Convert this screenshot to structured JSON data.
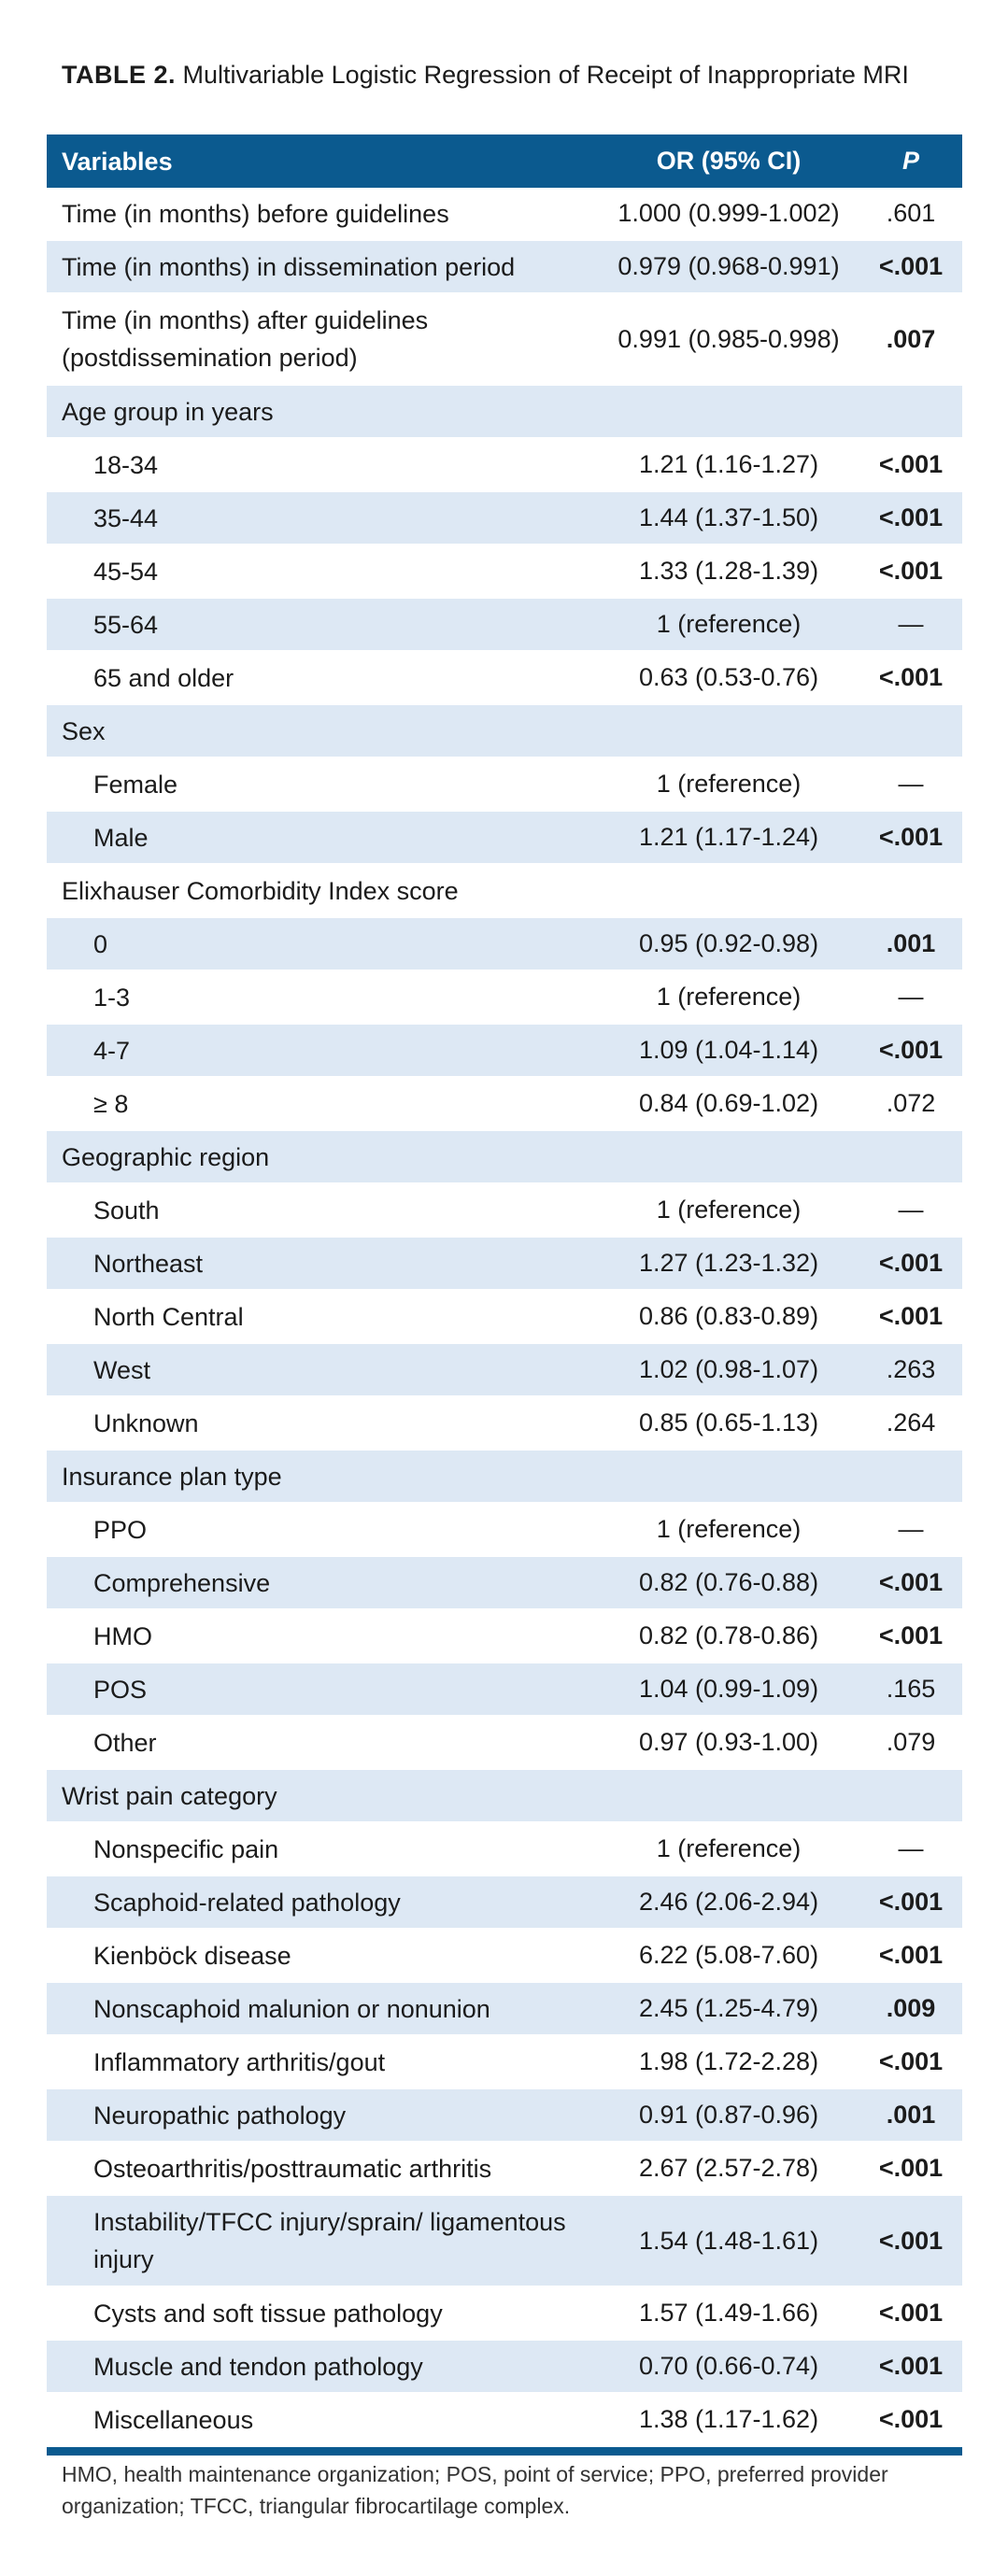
{
  "title": {
    "label": "TABLE 2.",
    "text": "Multivariable Logistic Regression of Receipt of Inappropriate MRI"
  },
  "header": {
    "variables": "Variables",
    "or": "OR (95% CI)",
    "p": "P"
  },
  "rows": [
    {
      "variable": "Time (in months) before guidelines",
      "or": "1.000 (0.999-1.002)",
      "p": ".601"
    },
    {
      "variable": "Time (in months) in dissemination period",
      "or": "0.979 (0.968-0.991)",
      "p": "<.001"
    },
    {
      "variable": "Time (in months) after guidelines (postdissemination period)",
      "or": "0.991 (0.985-0.998)",
      "p": ".007"
    },
    {
      "variable": "Age group in years",
      "or": "",
      "p": ""
    },
    {
      "variable": "18-34",
      "or": "1.21 (1.16-1.27)",
      "p": "<.001"
    },
    {
      "variable": "35-44",
      "or": "1.44 (1.37-1.50)",
      "p": "<.001"
    },
    {
      "variable": "45-54",
      "or": "1.33 (1.28-1.39)",
      "p": "<.001"
    },
    {
      "variable": "55-64",
      "or": "1 (reference)",
      "p": "—"
    },
    {
      "variable": "65 and older",
      "or": "0.63 (0.53-0.76)",
      "p": "<.001"
    },
    {
      "variable": "Sex",
      "or": "",
      "p": ""
    },
    {
      "variable": "Female",
      "or": "1 (reference)",
      "p": "—"
    },
    {
      "variable": "Male",
      "or": "1.21 (1.17-1.24)",
      "p": "<.001"
    },
    {
      "variable": "Elixhauser Comorbidity Index score",
      "or": "",
      "p": ""
    },
    {
      "variable": "0",
      "or": "0.95 (0.92-0.98)",
      "p": ".001"
    },
    {
      "variable": "1-3",
      "or": "1 (reference)",
      "p": "—"
    },
    {
      "variable": "4-7",
      "or": "1.09 (1.04-1.14)",
      "p": "<.001"
    },
    {
      "variable": "≥ 8",
      "or": "0.84 (0.69-1.02)",
      "p": ".072"
    },
    {
      "variable": "Geographic region",
      "or": "",
      "p": ""
    },
    {
      "variable": "South",
      "or": "1 (reference)",
      "p": "—"
    },
    {
      "variable": "Northeast",
      "or": "1.27 (1.23-1.32)",
      "p": "<.001"
    },
    {
      "variable": "North Central",
      "or": "0.86 (0.83-0.89)",
      "p": "<.001"
    },
    {
      "variable": "West",
      "or": "1.02 (0.98-1.07)",
      "p": ".263"
    },
    {
      "variable": "Unknown",
      "or": "0.85 (0.65-1.13)",
      "p": ".264"
    },
    {
      "variable": "Insurance plan type",
      "or": "",
      "p": ""
    },
    {
      "variable": "PPO",
      "or": "1 (reference)",
      "p": "—"
    },
    {
      "variable": "Comprehensive",
      "or": "0.82 (0.76-0.88)",
      "p": "<.001"
    },
    {
      "variable": "HMO",
      "or": "0.82 (0.78-0.86)",
      "p": "<.001"
    },
    {
      "variable": "POS",
      "or": "1.04 (0.99-1.09)",
      "p": ".165"
    },
    {
      "variable": "Other",
      "or": "0.97 (0.93-1.00)",
      "p": ".079"
    },
    {
      "variable": "Wrist pain category",
      "or": "",
      "p": ""
    },
    {
      "variable": "Nonspecific pain",
      "or": "1 (reference)",
      "p": "—"
    },
    {
      "variable": "Scaphoid-related pathology",
      "or": "2.46 (2.06-2.94)",
      "p": "<.001"
    },
    {
      "variable": "Kienböck disease",
      "or": "6.22 (5.08-7.60)",
      "p": "<.001"
    },
    {
      "variable": "Nonscaphoid malunion or nonunion",
      "or": "2.45 (1.25-4.79)",
      "p": ".009"
    },
    {
      "variable": "Inflammatory arthritis/gout",
      "or": "1.98 (1.72-2.28)",
      "p": "<.001"
    },
    {
      "variable": "Neuropathic pathology",
      "or": "0.91 (0.87-0.96)",
      "p": ".001"
    },
    {
      "variable": "Osteoarthritis/posttraumatic arthritis",
      "or": "2.67 (2.57-2.78)",
      "p": "<.001"
    },
    {
      "variable": "Instability/TFCC injury/sprain/ ligamentous injury",
      "or": "1.54 (1.48-1.61)",
      "p": "<.001"
    },
    {
      "variable": "Cysts and soft tissue pathology",
      "or": "1.57 (1.49-1.66)",
      "p": "<.001"
    },
    {
      "variable": "Muscle and tendon pathology",
      "or": "0.70 (0.66-0.74)",
      "p": "<.001"
    },
    {
      "variable": "Miscellaneous",
      "or": "1.38 (1.17-1.62)",
      "p": "<.001"
    }
  ],
  "footnote": "HMO, health maintenance organization; POS, point of service; PPO, preferred provider organization; TFCC, triangular fibrocartilage complex."
}
